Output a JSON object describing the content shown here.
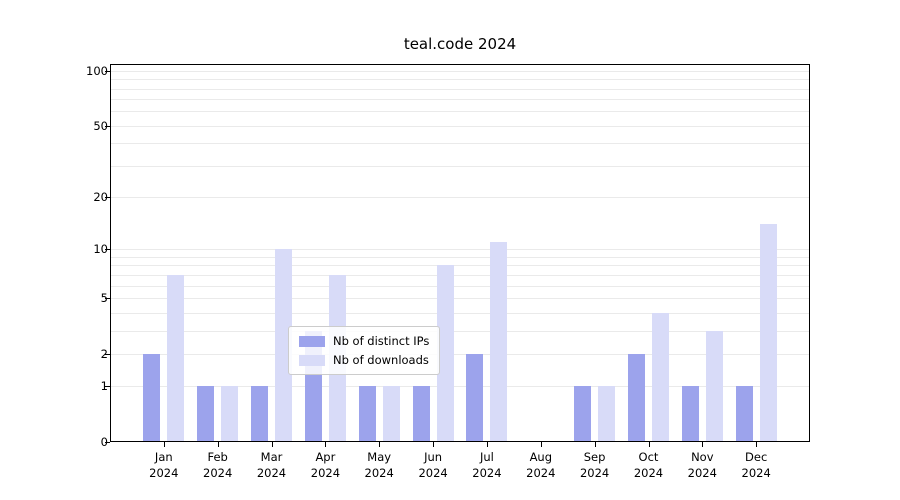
{
  "title": "teal.code 2024",
  "legend": {
    "items": [
      {
        "label": "Nb of distinct IPs",
        "color": "#9fa5ec-placeholder"
      },
      {
        "label": "Nb of downloads"
      }
    ]
  },
  "colors": {
    "distinct_ips": "#9ca3ec",
    "downloads": "#d8dbf8",
    "gridline": "#eaeaea",
    "axis": "#000000"
  },
  "chart_data": {
    "type": "bar",
    "title": "teal.code 2024",
    "categories": [
      "Jan 2024",
      "Feb 2024",
      "Mar 2024",
      "Apr 2024",
      "May 2024",
      "Jun 2024",
      "Jul 2024",
      "Aug 2024",
      "Sep 2024",
      "Oct 2024",
      "Nov 2024",
      "Dec 2024"
    ],
    "series": [
      {
        "name": "Nb of distinct IPs",
        "color": "#9ca3ec",
        "values": [
          2,
          1,
          1,
          3,
          1,
          1,
          2,
          0,
          1,
          2,
          1,
          1
        ]
      },
      {
        "name": "Nb of downloads",
        "color": "#d8dbf8",
        "values": [
          7,
          1,
          10,
          7,
          1,
          8,
          11,
          0,
          1,
          4,
          3,
          14
        ]
      }
    ],
    "xlabel": "",
    "ylabel": "",
    "yscale": "log1p",
    "ylim": [
      0,
      109
    ],
    "yticks": [
      0,
      1,
      2,
      5,
      10,
      20,
      50,
      100
    ],
    "minor_gridlines": [
      1,
      2,
      3,
      4,
      5,
      6,
      7,
      8,
      9,
      10,
      20,
      30,
      40,
      50,
      60,
      70,
      80,
      90,
      100
    ],
    "grid": true,
    "legend_position": "lower center"
  }
}
